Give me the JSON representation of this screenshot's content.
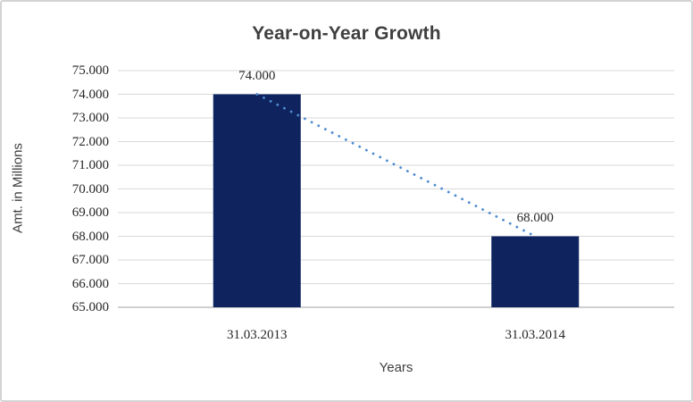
{
  "chart": {
    "title": "Year-on-Year Growth",
    "xlabel": "Years",
    "ylabel": "Amt. in Millions"
  },
  "chart_data": {
    "type": "bar",
    "title": "Year-on-Year Growth",
    "xlabel": "Years",
    "ylabel": "Amt. in Millions",
    "categories": [
      "31.03.2013",
      "31.03.2014"
    ],
    "values": [
      74.0,
      68.0
    ],
    "data_labels": [
      "74.000",
      "68.000"
    ],
    "ylim": [
      65.0,
      75.0
    ],
    "ytick_step": 1.0,
    "ytick_labels": [
      "75.000",
      "74.000",
      "73.000",
      "72.000",
      "71.000",
      "70.000",
      "69.000",
      "68.000",
      "67.000",
      "66.000",
      "65.000"
    ],
    "grid": true,
    "legend": false,
    "trendline": {
      "style": "dotted",
      "connects": "bar tops from 74.000 down to 68.000"
    },
    "colors": {
      "bar": "#0f245e",
      "trendline": "#4e8bd0",
      "gridline": "#d9d9d9",
      "axis_line": "#bfbfbf",
      "title": "#3f3f3f",
      "tick": "#262626",
      "axis_title": "#3f3f3f",
      "border": "#d3d3d3",
      "background": "#ffffff"
    }
  }
}
